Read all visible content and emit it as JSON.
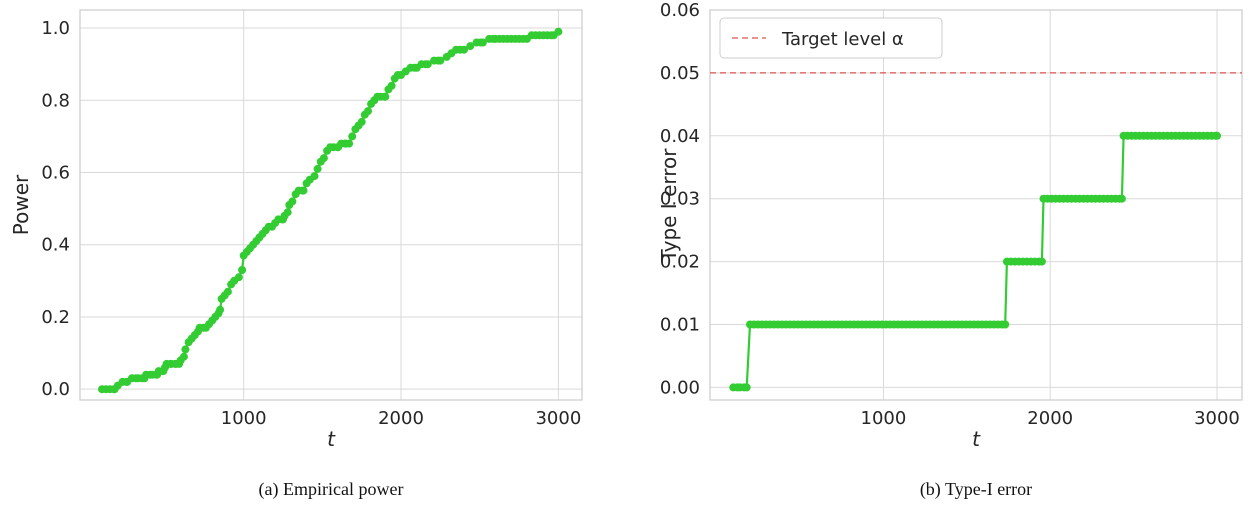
{
  "colors": {
    "series": "#33cc33",
    "target": "#d9534f",
    "grid": "#d9d9d9",
    "spine": "#cccccc"
  },
  "chart_data": [
    {
      "type": "line",
      "caption": "(a) Empirical power",
      "xlabel": "t",
      "ylabel": "Power",
      "xlim": [
        -40,
        3150
      ],
      "ylim": [
        -0.03,
        1.05
      ],
      "xticks": [
        1000,
        2000,
        3000
      ],
      "yticks": [
        0.0,
        0.2,
        0.4,
        0.6,
        0.8,
        1.0
      ],
      "ytick_labels": [
        "0.0",
        "0.2",
        "0.4",
        "0.6",
        "0.8",
        "1.0"
      ],
      "grid": true,
      "legend": null,
      "series": [
        {
          "color": "#33cc33",
          "points": [
            [
              100,
              0.0
            ],
            [
              150,
              0.0
            ],
            [
              180,
              0.0
            ],
            [
              200,
              0.01
            ],
            [
              230,
              0.02
            ],
            [
              260,
              0.02
            ],
            [
              290,
              0.03
            ],
            [
              330,
              0.03
            ],
            [
              370,
              0.03
            ],
            [
              380,
              0.04
            ],
            [
              420,
              0.04
            ],
            [
              450,
              0.04
            ],
            [
              460,
              0.05
            ],
            [
              490,
              0.05
            ],
            [
              500,
              0.06
            ],
            [
              510,
              0.07
            ],
            [
              540,
              0.07
            ],
            [
              570,
              0.07
            ],
            [
              590,
              0.07
            ],
            [
              600,
              0.08
            ],
            [
              620,
              0.09
            ],
            [
              630,
              0.11
            ],
            [
              650,
              0.13
            ],
            [
              670,
              0.14
            ],
            [
              690,
              0.15
            ],
            [
              710,
              0.16
            ],
            [
              720,
              0.17
            ],
            [
              760,
              0.17
            ],
            [
              780,
              0.18
            ],
            [
              800,
              0.19
            ],
            [
              820,
              0.2
            ],
            [
              840,
              0.21
            ],
            [
              850,
              0.22
            ],
            [
              860,
              0.25
            ],
            [
              880,
              0.26
            ],
            [
              900,
              0.27
            ],
            [
              920,
              0.29
            ],
            [
              940,
              0.3
            ],
            [
              970,
              0.31
            ],
            [
              990,
              0.33
            ],
            [
              1000,
              0.37
            ],
            [
              1020,
              0.38
            ],
            [
              1040,
              0.39
            ],
            [
              1060,
              0.4
            ],
            [
              1080,
              0.41
            ],
            [
              1100,
              0.42
            ],
            [
              1120,
              0.43
            ],
            [
              1140,
              0.44
            ],
            [
              1160,
              0.45
            ],
            [
              1180,
              0.45
            ],
            [
              1200,
              0.46
            ],
            [
              1220,
              0.47
            ],
            [
              1250,
              0.47
            ],
            [
              1260,
              0.48
            ],
            [
              1280,
              0.49
            ],
            [
              1290,
              0.51
            ],
            [
              1310,
              0.52
            ],
            [
              1330,
              0.54
            ],
            [
              1350,
              0.55
            ],
            [
              1380,
              0.55
            ],
            [
              1400,
              0.57
            ],
            [
              1420,
              0.58
            ],
            [
              1450,
              0.59
            ],
            [
              1470,
              0.61
            ],
            [
              1490,
              0.63
            ],
            [
              1510,
              0.64
            ],
            [
              1530,
              0.66
            ],
            [
              1550,
              0.67
            ],
            [
              1570,
              0.67
            ],
            [
              1600,
              0.67
            ],
            [
              1620,
              0.68
            ],
            [
              1650,
              0.68
            ],
            [
              1670,
              0.68
            ],
            [
              1690,
              0.7
            ],
            [
              1710,
              0.72
            ],
            [
              1730,
              0.73
            ],
            [
              1750,
              0.74
            ],
            [
              1770,
              0.76
            ],
            [
              1790,
              0.77
            ],
            [
              1810,
              0.79
            ],
            [
              1830,
              0.8
            ],
            [
              1850,
              0.81
            ],
            [
              1870,
              0.81
            ],
            [
              1900,
              0.81
            ],
            [
              1920,
              0.83
            ],
            [
              1940,
              0.84
            ],
            [
              1960,
              0.86
            ],
            [
              1980,
              0.87
            ],
            [
              2000,
              0.87
            ],
            [
              2030,
              0.88
            ],
            [
              2060,
              0.89
            ],
            [
              2100,
              0.89
            ],
            [
              2130,
              0.9
            ],
            [
              2170,
              0.9
            ],
            [
              2210,
              0.91
            ],
            [
              2250,
              0.91
            ],
            [
              2290,
              0.92
            ],
            [
              2320,
              0.93
            ],
            [
              2350,
              0.94
            ],
            [
              2400,
              0.94
            ],
            [
              2440,
              0.95
            ],
            [
              2480,
              0.96
            ],
            [
              2520,
              0.96
            ],
            [
              2560,
              0.97
            ],
            [
              2600,
              0.97
            ],
            [
              2650,
              0.97
            ],
            [
              2700,
              0.97
            ],
            [
              2750,
              0.97
            ],
            [
              2800,
              0.97
            ],
            [
              2830,
              0.98
            ],
            [
              2880,
              0.98
            ],
            [
              2930,
              0.98
            ],
            [
              2970,
              0.98
            ],
            [
              3000,
              0.99
            ]
          ]
        }
      ]
    },
    {
      "type": "line",
      "caption": "(b) Type-I error",
      "xlabel": "t",
      "ylabel": "Type I error",
      "xlim": [
        -40,
        3150
      ],
      "ylim": [
        -0.002,
        0.06
      ],
      "xticks": [
        1000,
        2000,
        3000
      ],
      "yticks": [
        0.0,
        0.01,
        0.02,
        0.03,
        0.04,
        0.05,
        0.06
      ],
      "ytick_labels": [
        "0.00",
        "0.01",
        "0.02",
        "0.03",
        "0.04",
        "0.05",
        "0.06"
      ],
      "grid": true,
      "legend": "top-left",
      "hline": {
        "y": 0.05,
        "label": "Target level α",
        "color": "#d9534f",
        "style": "dashed"
      },
      "series": [
        {
          "color": "#33cc33",
          "points": [
            [
              100,
              0.0
            ],
            [
              140,
              0.0
            ],
            [
              180,
              0.0
            ],
            [
              200,
              0.01
            ],
            [
              1730,
              0.01
            ],
            [
              1740,
              0.02
            ],
            [
              1950,
              0.02
            ],
            [
              1960,
              0.03
            ],
            [
              2430,
              0.03
            ],
            [
              2440,
              0.04
            ],
            [
              3000,
              0.04
            ]
          ]
        }
      ]
    }
  ]
}
